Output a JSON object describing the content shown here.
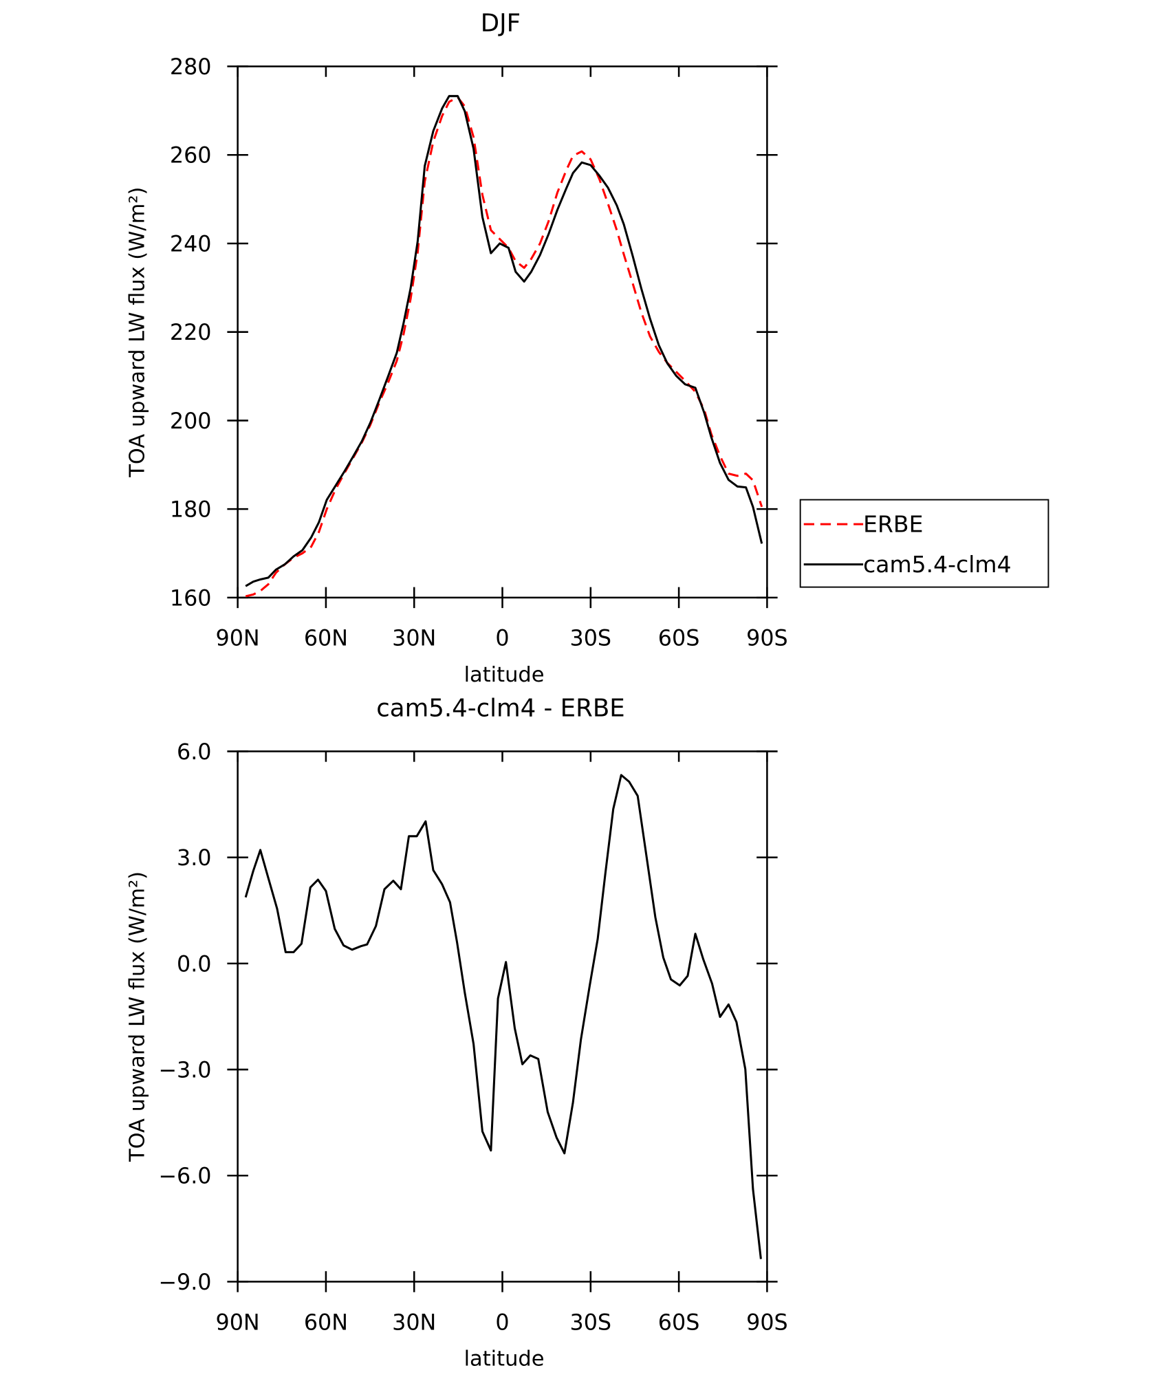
{
  "chart_data": [
    {
      "type": "line",
      "title": "DJF",
      "xlabel": "latitude",
      "ylabel": "TOA upward LW flux (W/m²)",
      "x": [
        87.3,
        84.7,
        82.3,
        79.6,
        77,
        74,
        71,
        68,
        65,
        62.4,
        59.7,
        56.7,
        53.8,
        50.8,
        47.8,
        44.9,
        41.9,
        38.9,
        35.9,
        33.6,
        31.2,
        28.8,
        26.4,
        23.5,
        20.5,
        18.1,
        15.2,
        12.8,
        9.8,
        6.8,
        3.9,
        0.9,
        -2.1,
        -4.5,
        -7.4,
        -9.8,
        -12.8,
        -15.7,
        -18.7,
        -21.7,
        -24,
        -27,
        -30,
        -33,
        -35.9,
        -38.9,
        -41.3,
        -44.3,
        -47.2,
        -50.2,
        -53.2,
        -56.1,
        -59.1,
        -62.1,
        -65.6,
        -68.6,
        -71,
        -74,
        -76.9,
        -79.9,
        -82.8,
        -85.2,
        -88.2
      ],
      "series": [
        {
          "name": "ERBE",
          "color": "#ff0000",
          "linestyle": "dashed",
          "values": [
            160.3,
            160.7,
            161.5,
            163,
            165.6,
            167.5,
            169,
            170,
            171.5,
            174.8,
            180,
            184.5,
            188,
            191.5,
            195,
            199,
            204,
            208.5,
            213.5,
            219.5,
            227.5,
            238,
            254,
            263,
            268.8,
            272,
            273,
            271,
            264,
            251,
            243,
            241,
            239,
            236,
            234.5,
            236.5,
            240,
            245,
            251.5,
            256.5,
            259.8,
            260.8,
            259,
            254.5,
            249,
            243,
            237.5,
            231,
            224.5,
            219,
            215.5,
            213,
            211,
            209,
            206.5,
            202.5,
            197,
            192,
            188,
            187.5,
            188,
            186.5,
            180.5
          ]
        },
        {
          "name": "cam5.4-clm4",
          "color": "#000000",
          "linestyle": "solid",
          "values": [
            162.6,
            163.6,
            164.1,
            164.5,
            166.3,
            167.5,
            169.3,
            170.7,
            173.6,
            177,
            182.1,
            185.3,
            188.4,
            191.8,
            195.3,
            199.5,
            204.6,
            209.9,
            215.3,
            222,
            229.9,
            240.5,
            257.5,
            265.4,
            270.5,
            273.3,
            273.3,
            269.9,
            261.4,
            246,
            237.8,
            240,
            239,
            233.6,
            231.4,
            233.6,
            237.4,
            242.1,
            247.6,
            252.4,
            255.9,
            258.3,
            257.7,
            255.3,
            252.6,
            248.6,
            244.3,
            237.2,
            229.9,
            223,
            217,
            212.9,
            210.1,
            208.2,
            207.4,
            201.8,
            196.3,
            190.4,
            186.6,
            185.1,
            184.9,
            180.5,
            172.2
          ]
        }
      ],
      "xlim": [
        90,
        -90
      ],
      "xticks": [
        {
          "value": 90,
          "label": "90N"
        },
        {
          "value": 60,
          "label": "60N"
        },
        {
          "value": 30,
          "label": "30N"
        },
        0,
        {
          "value": -30,
          "label": "30S"
        },
        {
          "value": -60,
          "label": "60S"
        },
        {
          "value": -90,
          "label": "90S"
        }
      ],
      "ylim": [
        160,
        280
      ],
      "yticks": [
        160,
        180,
        200,
        220,
        240,
        260,
        280
      ],
      "legend": "outside-right"
    },
    {
      "type": "line",
      "title": "cam5.4-clm4 - ERBE",
      "xlabel": "latitude",
      "ylabel": "TOA upward LW flux (W/m²)",
      "x": [
        87.3,
        84.7,
        82.3,
        79.6,
        76.6,
        73.7,
        71,
        68.3,
        65.3,
        62.7,
        60,
        57,
        54,
        51.1,
        48.1,
        46,
        43,
        40.1,
        37.1,
        34.5,
        31.8,
        29.1,
        26.1,
        23.5,
        20.5,
        17.8,
        15.4,
        12.8,
        9.8,
        6.8,
        3.9,
        1.5,
        -1.2,
        -4.2,
        -6.8,
        -9.5,
        -12.2,
        -15.4,
        -18.4,
        -21.1,
        -24,
        -26.7,
        -29.7,
        -32.4,
        -35,
        -37.7,
        -40.4,
        -43.1,
        -46,
        -49,
        -52,
        -54.7,
        -57.3,
        -60.3,
        -63,
        -65.6,
        -68.3,
        -71.3,
        -74,
        -76.9,
        -79.6,
        -82.6,
        -85.2,
        -87.9
      ],
      "color": "#000000",
      "values": [
        1.87,
        2.62,
        3.21,
        2.42,
        1.55,
        0.32,
        0.32,
        0.56,
        2.15,
        2.37,
        2.05,
        0.98,
        0.51,
        0.39,
        0.49,
        0.54,
        1.06,
        2.1,
        2.34,
        2.1,
        3.6,
        3.6,
        4.02,
        2.64,
        2.24,
        1.73,
        0.59,
        -0.82,
        -2.28,
        -4.75,
        -5.29,
        -0.99,
        0.04,
        -1.83,
        -2.85,
        -2.6,
        -2.7,
        -4.2,
        -4.92,
        -5.37,
        -3.93,
        -2.15,
        -0.62,
        0.69,
        2.54,
        4.37,
        5.33,
        5.14,
        4.74,
        3.03,
        1.31,
        0.17,
        -0.45,
        -0.62,
        -0.35,
        0.84,
        0.12,
        -0.57,
        -1.51,
        -1.16,
        -1.66,
        -2.99,
        -6.38,
        -8.36
      ],
      "xlim": [
        90,
        -90
      ],
      "xticks": [
        {
          "value": 90,
          "label": "90N"
        },
        {
          "value": 60,
          "label": "60N"
        },
        {
          "value": 30,
          "label": "30N"
        },
        0,
        {
          "value": -30,
          "label": "30S"
        },
        {
          "value": -60,
          "label": "60S"
        },
        {
          "value": -90,
          "label": "90S"
        }
      ],
      "ylim": [
        -9,
        6
      ],
      "yticks": [
        {
          "value": -9,
          "label": "−9.0"
        },
        {
          "value": -6,
          "label": "−6.0"
        },
        {
          "value": -3,
          "label": "−3.0"
        },
        {
          "value": 0,
          "label": "0.0"
        },
        {
          "value": 3,
          "label": "3.0"
        },
        {
          "value": 6,
          "label": "6.0"
        }
      ]
    }
  ]
}
